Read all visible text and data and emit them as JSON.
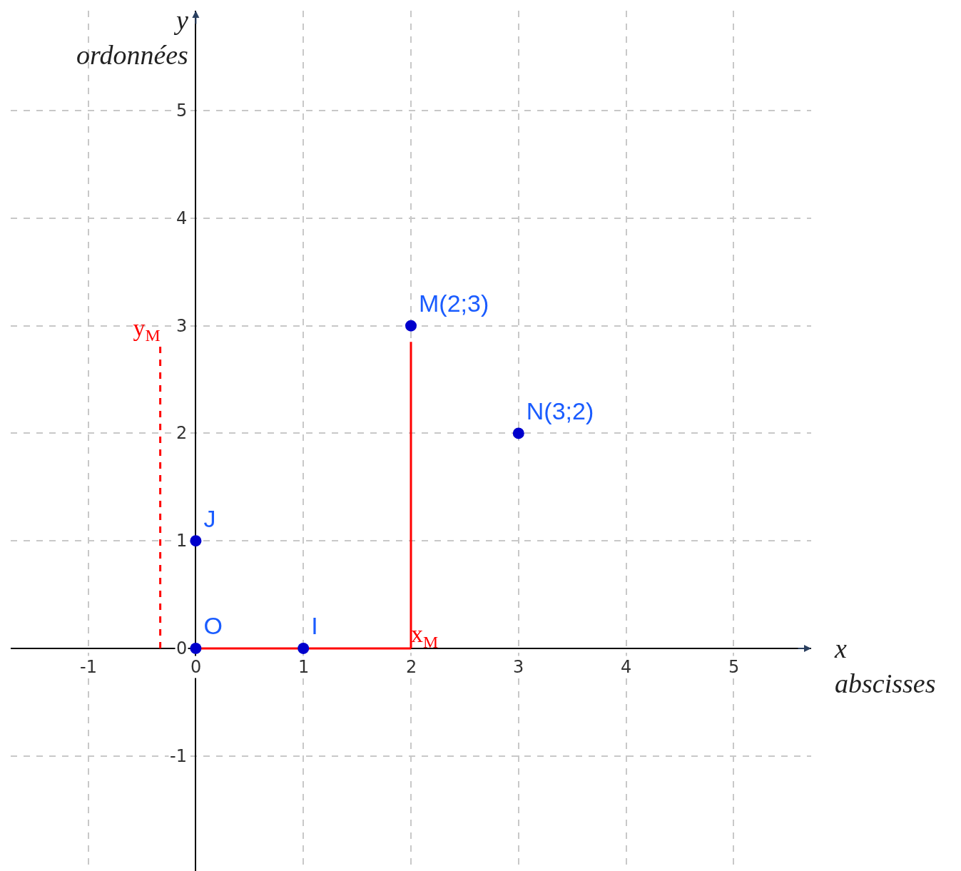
{
  "chart_data": {
    "type": "scatter",
    "xlabel": "x\nabscisses",
    "ylabel": "y\nordonnées",
    "xlim": [
      -1.72,
      5.72
    ],
    "ylim": [
      -2.07,
      5.93
    ],
    "xticks": [
      -1,
      0,
      1,
      2,
      3,
      4,
      5
    ],
    "yticks": [
      -1,
      0,
      1,
      2,
      3,
      4,
      5
    ],
    "grid": true,
    "series": [
      {
        "type": "line",
        "color": "#ff0000",
        "x": [
          0,
          2
        ],
        "values": [
          0,
          0
        ],
        "line_style": "solid",
        "marker": "none"
      },
      {
        "type": "line",
        "color": "#ff0000",
        "x": [
          2,
          2
        ],
        "values": [
          0,
          2.85
        ],
        "line_style": "solid",
        "marker": "none",
        "value_labels": [
          "x$_{M}$",
          null
        ]
      },
      {
        "type": "line",
        "color": "#ff0000",
        "x": [
          -0.33,
          -0.33
        ],
        "values": [
          0,
          2.85
        ],
        "line_style": "dashed",
        "marker": "none",
        "value_labels": [
          null,
          "y$_{M}$"
        ]
      },
      {
        "color": "#0000cc",
        "x": [
          0,
          1,
          0,
          2,
          3
        ],
        "values": [
          0,
          0,
          1,
          3,
          2
        ],
        "marker": "circle",
        "value_labels": [
          "O",
          "I",
          "J",
          "M(2;3)",
          "N(3;2)"
        ]
      }
    ]
  }
}
